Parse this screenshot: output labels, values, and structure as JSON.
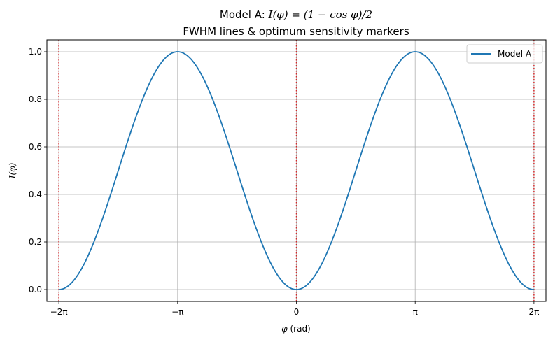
{
  "chart_data": {
    "type": "line",
    "title_prefix": "Model A: ",
    "title_math": "I(φ) = (1 − cos φ)/2",
    "subtitle": "FWHM lines & optimum sensitivity markers",
    "xlabel_var": "φ",
    "xlabel_unit": " (rad)",
    "ylabel": "I(φ)",
    "xlim": [
      -6.6,
      6.6
    ],
    "ylim": [
      -0.05,
      1.05
    ],
    "x_ticks": [
      {
        "value": -6.283185,
        "label": "−2π"
      },
      {
        "value": -3.141593,
        "label": "−π"
      },
      {
        "value": 0,
        "label": "0"
      },
      {
        "value": 3.141593,
        "label": "π"
      },
      {
        "value": 6.283185,
        "label": "2π"
      }
    ],
    "y_ticks": [
      {
        "value": 0.0,
        "label": "0.0"
      },
      {
        "value": 0.2,
        "label": "0.2"
      },
      {
        "value": 0.4,
        "label": "0.4"
      },
      {
        "value": 0.6,
        "label": "0.6"
      },
      {
        "value": 0.8,
        "label": "0.8"
      },
      {
        "value": 1.0,
        "label": "1.0"
      }
    ],
    "grid": true,
    "legend_position": "top-right",
    "series": [
      {
        "name": "Model A",
        "color": "#1f77b4",
        "function": "(1 - cos(x)) / 2",
        "x_range": [
          -6.283185,
          6.283185
        ]
      }
    ],
    "vertical_lines": [
      {
        "x": -6.283185,
        "color": "#d62728",
        "style": "dotted"
      },
      {
        "x": 0,
        "color": "#d62728",
        "style": "dotted"
      },
      {
        "x": 6.283185,
        "color": "#d62728",
        "style": "dotted"
      }
    ]
  }
}
